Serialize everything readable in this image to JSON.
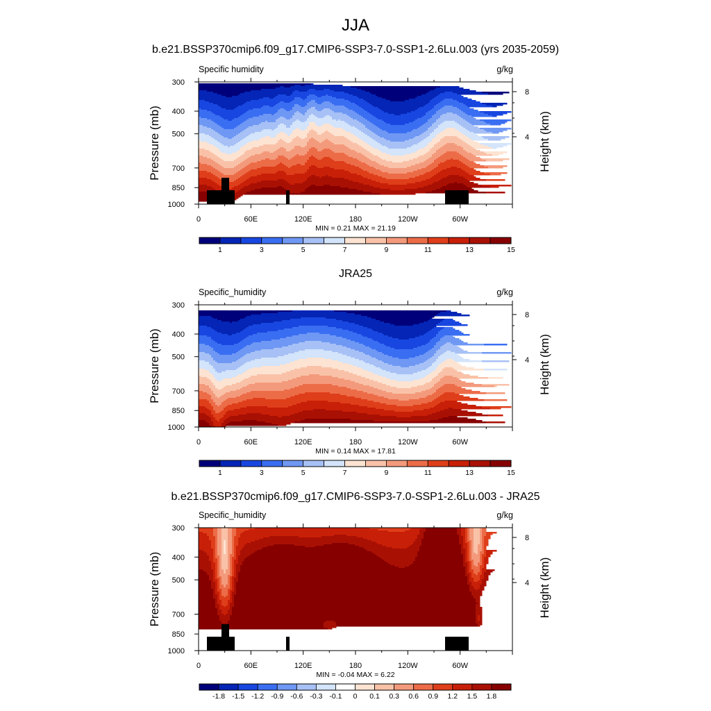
{
  "figure": {
    "title": "JJA"
  },
  "chart_data": [
    {
      "type": "heatmap",
      "title": "b.e21.BSSP370cmip6.f09_g17.CMIP6-SSP3-7.0-SSP1-2.6Lu.003 (yrs 2035-2059)",
      "variable_label": "Specific humidity",
      "units": "g/kg",
      "ylabel": "Pressure (mb)",
      "ylabel_right": "Height (km)",
      "x_ticks": [
        "0",
        "60E",
        "120E",
        "180",
        "120W",
        "60W"
      ],
      "y_ticks": [
        "300",
        "400",
        "500",
        "700",
        "850",
        "1000"
      ],
      "y_right_ticks": [
        "8",
        "4"
      ],
      "stats": "MIN =   0.21  MAX =  21.19",
      "colorbar_labels": [
        "1",
        "3",
        "5",
        "7",
        "9",
        "11",
        "13",
        "15"
      ],
      "colors": [
        "#00007a",
        "#0425b5",
        "#1846e0",
        "#3a6ef2",
        "#6f98f4",
        "#a7c1f6",
        "#d3e4fb",
        "#fde3d2",
        "#f9c2a8",
        "#f49a7c",
        "#ec6c48",
        "#df3e1a",
        "#c81f08",
        "#a91004",
        "#860000"
      ],
      "terrain": true
    },
    {
      "type": "heatmap",
      "title": "JRA25",
      "variable_label": "Specific_humidity",
      "units": "g/kg",
      "ylabel": "Pressure (mb)",
      "ylabel_right": "Height (km)",
      "x_ticks": [
        "0",
        "60E",
        "120E",
        "180",
        "120W",
        "60W"
      ],
      "y_ticks": [
        "300",
        "400",
        "500",
        "700",
        "850",
        "1000"
      ],
      "y_right_ticks": [
        "8",
        "4"
      ],
      "stats": "MIN =   0.14  MAX =  17.81",
      "colorbar_labels": [
        "1",
        "3",
        "5",
        "7",
        "9",
        "11",
        "13",
        "15"
      ],
      "colors": [
        "#00007a",
        "#0425b5",
        "#1846e0",
        "#3a6ef2",
        "#6f98f4",
        "#a7c1f6",
        "#d3e4fb",
        "#fde3d2",
        "#f9c2a8",
        "#f49a7c",
        "#ec6c48",
        "#df3e1a",
        "#c81f08",
        "#a91004",
        "#860000"
      ],
      "terrain": false
    },
    {
      "type": "heatmap",
      "title": "b.e21.BSSP370cmip6.f09_g17.CMIP6-SSP3-7.0-SSP1-2.6Lu.003 - JRA25",
      "variable_label": "Specific_humidity",
      "units": "g/kg",
      "ylabel": "Pressure (mb)",
      "ylabel_right": "Height (km)",
      "x_ticks": [
        "0",
        "60E",
        "120E",
        "180",
        "120W",
        "60W"
      ],
      "y_ticks": [
        "300",
        "400",
        "500",
        "700",
        "850",
        "1000"
      ],
      "y_right_ticks": [
        "8",
        "4"
      ],
      "stats": "MIN =  -0.04  MAX =   6.22",
      "colorbar_labels": [
        "-1.8",
        "-1.5",
        "-1.2",
        "-0.9",
        "-0.6",
        "-0.3",
        "-0.1",
        "0",
        "0.1",
        "0.3",
        "0.6",
        "0.9",
        "1.2",
        "1.5",
        "1.8"
      ],
      "colors": [
        "#00007a",
        "#0425b5",
        "#1846e0",
        "#3a6ef2",
        "#6f98f4",
        "#a7c1f6",
        "#d3e4fb",
        "#ffffff",
        "#fde3d2",
        "#f9c2a8",
        "#f49a7c",
        "#ec6c48",
        "#df3e1a",
        "#c81f08",
        "#a91004",
        "#860000"
      ],
      "terrain": true
    }
  ]
}
